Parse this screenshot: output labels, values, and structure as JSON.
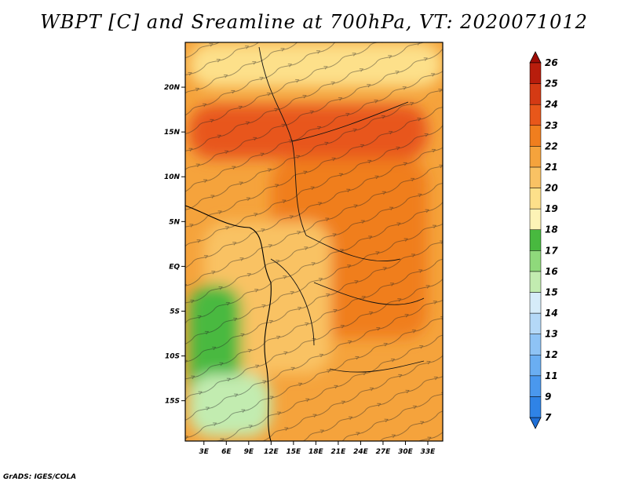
{
  "title": "WBPT [C] and Sreamline at 700hPa, VT: 2020071012",
  "credit": "GrADS: IGES/COLA",
  "chart_data": {
    "type": "heatmap",
    "variable": "wet-bulb potential temperature with streamlines",
    "level": "700hPa",
    "valid_time": "2020071012",
    "x_ticks": [
      "3E",
      "6E",
      "9E",
      "12E",
      "15E",
      "18E",
      "21E",
      "24E",
      "27E",
      "30E",
      "33E"
    ],
    "x_tick_values": [
      3,
      6,
      9,
      12,
      15,
      18,
      21,
      24,
      27,
      30,
      33
    ],
    "y_ticks": [
      "20N",
      "15N",
      "10N",
      "5N",
      "EQ",
      "5S",
      "10S",
      "15S"
    ],
    "y_tick_values": [
      20,
      15,
      10,
      5,
      0,
      -5,
      -10,
      -15
    ],
    "xlim": [
      0.5,
      35
    ],
    "ylim": [
      -19.5,
      25
    ],
    "colorbar": {
      "labels": [
        "7",
        "9",
        "11",
        "12",
        "13",
        "14",
        "15",
        "16",
        "17",
        "18",
        "19",
        "20",
        "21",
        "22",
        "23",
        "24",
        "25",
        "26"
      ],
      "colors": [
        "#1f6fd6",
        "#2f83e6",
        "#4a98ee",
        "#6aaef2",
        "#8ec3f5",
        "#b4d8f7",
        "#d6ecf9",
        "#c2ecb0",
        "#8fd97b",
        "#48b93f",
        "#fdf3b6",
        "#fde08a",
        "#f9c264",
        "#f5a33c",
        "#f07e1e",
        "#e8571a",
        "#d43a14",
        "#b81d0c",
        "#9e0c06"
      ],
      "orientation": "vertical",
      "placement": "right"
    },
    "regions": [
      {
        "value_class": "23",
        "lat": [
          12,
          18
        ],
        "lon": [
          1,
          33
        ]
      },
      {
        "value_class": "22",
        "lat": [
          -8,
          12
        ],
        "lon": [
          12,
          33
        ]
      },
      {
        "value_class": "20",
        "lat": [
          -12,
          5
        ],
        "lon": [
          3,
          20
        ]
      },
      {
        "value_class": "17",
        "lat": [
          -19,
          -2
        ],
        "lon": [
          1,
          8
        ]
      },
      {
        "value_class": "15",
        "lat": [
          -19,
          -12
        ],
        "lon": [
          1,
          12
        ]
      },
      {
        "value_class": "19",
        "lat": [
          20,
          25
        ],
        "lon": [
          1,
          35
        ]
      }
    ]
  }
}
